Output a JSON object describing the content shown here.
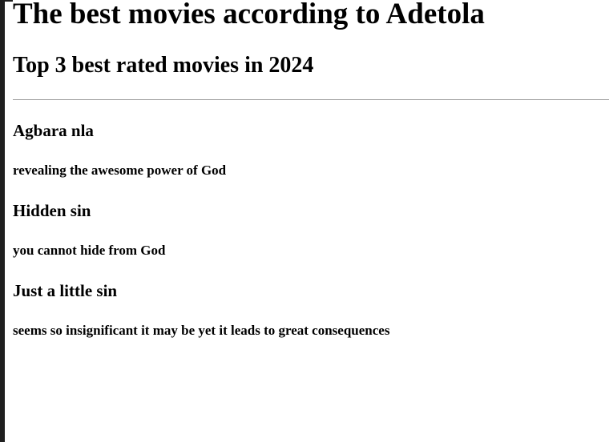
{
  "page": {
    "heading": "The best movies according to Adetola",
    "subheading": "Top 3 best rated movies in 2024"
  },
  "movies": [
    {
      "title": "Agbara nla",
      "description": "revealing the awesome power of God"
    },
    {
      "title": "Hidden sin",
      "description": "you cannot hide from God"
    },
    {
      "title": "Just a little sin",
      "description": "seems so insignificant it may be yet it leads to great consequences"
    }
  ]
}
